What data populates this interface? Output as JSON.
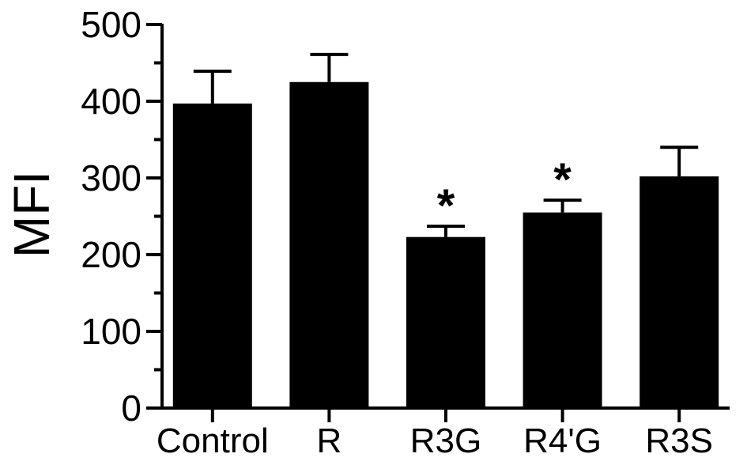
{
  "chart_data": {
    "type": "bar",
    "title": "",
    "xlabel": "",
    "ylabel": "MFI",
    "ylim": [
      0,
      500
    ],
    "yticks": [
      "0",
      "100",
      "200",
      "300",
      "400",
      "500"
    ],
    "grid": false,
    "categories": [
      "Control",
      "R",
      "R3G",
      "R4'G",
      "R3S"
    ],
    "values": [
      397,
      425,
      223,
      255,
      302
    ],
    "errors": [
      42,
      36,
      14,
      16,
      38
    ],
    "annotations": [
      "",
      "",
      "*",
      "*",
      ""
    ],
    "bar_color": "#000000"
  }
}
